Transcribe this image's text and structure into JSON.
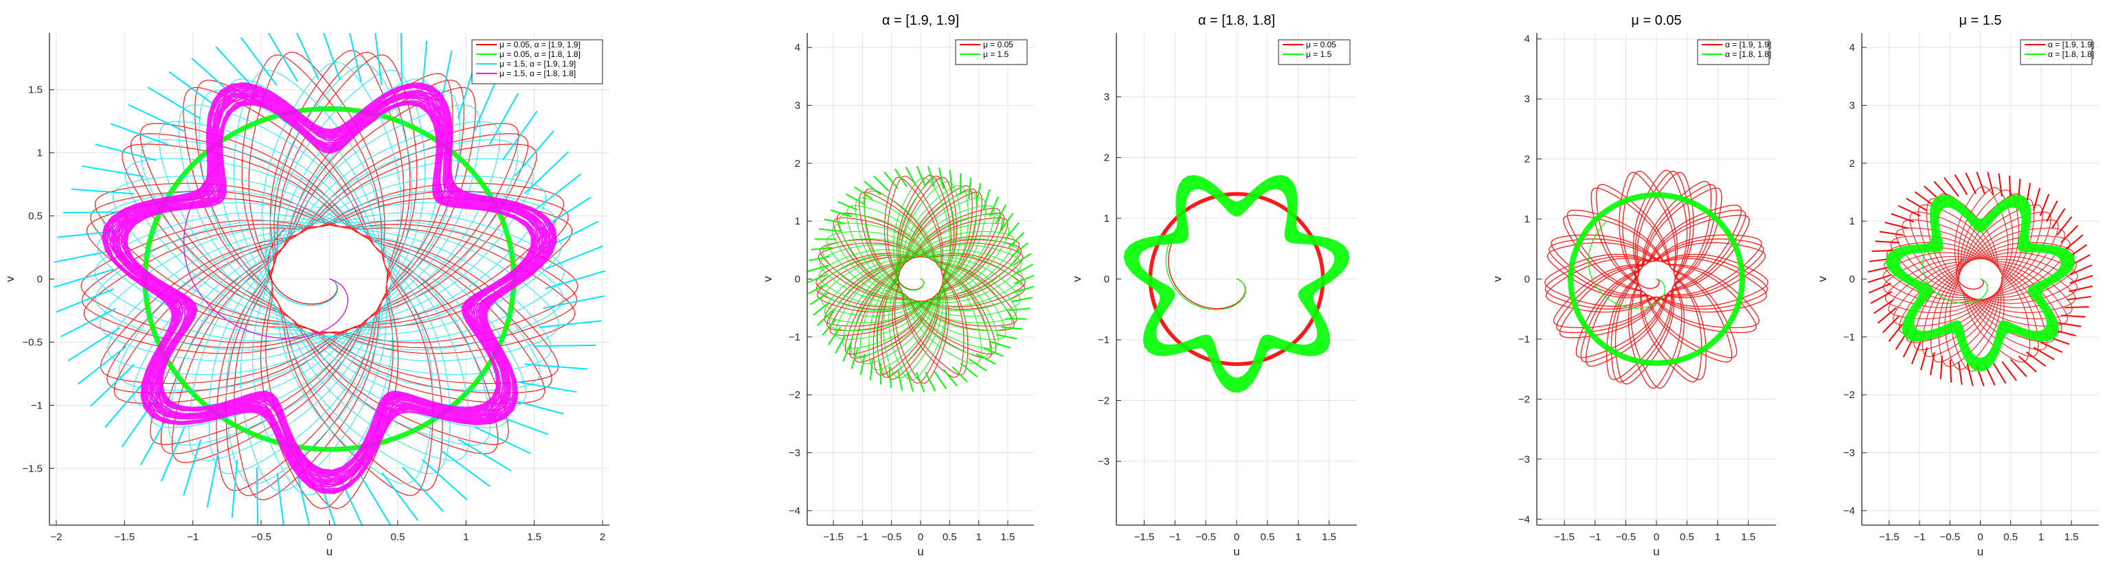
{
  "chart_data": [
    {
      "type": "line",
      "title": "",
      "xlabel": "u",
      "ylabel": "v",
      "xlim": [
        -2.05,
        2.05
      ],
      "ylim": [
        -1.95,
        1.95
      ],
      "xticks": [
        -2,
        -1.5,
        -1,
        -0.5,
        0,
        0.5,
        1,
        1.5,
        2
      ],
      "yticks": [
        -1.5,
        -1,
        -0.5,
        0,
        0.5,
        1,
        1.5
      ],
      "grid": true,
      "legend_position": "top-right",
      "series": [
        {
          "name": "μ = 0.05, α = [1.9, 1.9]",
          "color": "#ff0000",
          "style": "rosette",
          "r_inner": 0.42,
          "r_outer": 1.82,
          "loops": 46,
          "turn": 0.47,
          "width": 1.2,
          "spikes": 0
        },
        {
          "name": "μ = 0.05, α = [1.8, 1.8]",
          "color": "#00ff00",
          "style": "ring",
          "r_ring": 1.35,
          "band": 0.035,
          "lobes": 0,
          "width": 2.6,
          "spikes": 0
        },
        {
          "name": "μ = 1.5, α = [1.9, 1.9]",
          "color": "#00e5ff",
          "style": "rosette",
          "r_inner": 0.45,
          "r_outer": 1.72,
          "loops": 46,
          "turn": 0.49,
          "width": 1.0,
          "spikes": 0.3
        },
        {
          "name": "μ = 1.5, α = [1.8, 1.8]",
          "color": "#ff00ff",
          "style": "ring",
          "r_ring": 1.35,
          "band": 0.26,
          "lobes": 7,
          "width": 2.4,
          "spikes": 0
        }
      ]
    },
    {
      "type": "line",
      "title": "α = [1.9, 1.9]",
      "xlabel": "u",
      "ylabel": "v",
      "xlim": [
        -1.95,
        1.95
      ],
      "ylim": [
        -4.25,
        4.25
      ],
      "xticks": [
        -1.5,
        -1,
        -0.5,
        0,
        0.5,
        1,
        1.5
      ],
      "yticks": [
        -4,
        -3,
        -2,
        -1,
        0,
        1,
        2,
        3,
        4
      ],
      "grid": true,
      "legend_position": "top-right",
      "series": [
        {
          "name": "μ = 0.05",
          "color": "#ff0000",
          "style": "rosette",
          "r_inner": 0.38,
          "r_outer": 1.8,
          "loops": 42,
          "turn": 0.47,
          "width": 1.1,
          "spikes": 0
        },
        {
          "name": "μ = 1.5",
          "color": "#00ff00",
          "style": "rosette",
          "r_inner": 0.4,
          "r_outer": 1.75,
          "loops": 42,
          "turn": 0.49,
          "width": 1.1,
          "spikes": 0.2
        }
      ]
    },
    {
      "type": "line",
      "title": "α = [1.8, 1.8]",
      "xlabel": "u",
      "ylabel": "v",
      "xlim": [
        -1.95,
        1.95
      ],
      "ylim": [
        -4.05,
        4.05
      ],
      "xticks": [
        -1.5,
        -1,
        -0.5,
        0,
        0.5,
        1,
        1.5
      ],
      "yticks": [
        -3,
        -2,
        -1,
        0,
        1,
        2,
        3
      ],
      "grid": true,
      "legend_position": "top-right",
      "series": [
        {
          "name": "μ = 0.05",
          "color": "#ff0000",
          "style": "ring",
          "r_ring": 1.4,
          "band": 0.05,
          "lobes": 0,
          "width": 2.4,
          "spikes": 0
        },
        {
          "name": "μ = 1.5",
          "color": "#00ff00",
          "style": "ring",
          "r_ring": 1.45,
          "band": 0.3,
          "lobes": 7,
          "width": 3.4,
          "spikes": 0
        }
      ]
    },
    {
      "type": "line",
      "title": "μ = 0.05",
      "xlabel": "u",
      "ylabel": "v",
      "xlim": [
        -1.95,
        1.95
      ],
      "ylim": [
        -4.1,
        4.1
      ],
      "xticks": [
        -1.5,
        -1,
        -0.5,
        0,
        0.5,
        1,
        1.5
      ],
      "yticks": [
        -4,
        -3,
        -2,
        -1,
        0,
        1,
        2,
        3,
        4
      ],
      "grid": true,
      "legend_position": "top-right",
      "series": [
        {
          "name": "α = [1.9, 1.9]",
          "color": "#ff0000",
          "style": "rosette",
          "r_inner": 0.3,
          "r_outer": 1.82,
          "loops": 44,
          "turn": 0.47,
          "width": 1.3,
          "spikes": 0
        },
        {
          "name": "α = [1.8, 1.8]",
          "color": "#00ff00",
          "style": "ring",
          "r_ring": 1.4,
          "band": 0.06,
          "lobes": 0,
          "width": 4.5,
          "spikes": 0
        }
      ]
    },
    {
      "type": "line",
      "title": "μ = 1.5",
      "xlabel": "u",
      "ylabel": "v",
      "xlim": [
        -1.95,
        1.95
      ],
      "ylim": [
        -4.25,
        4.25
      ],
      "xticks": [
        -1.5,
        -1,
        -0.5,
        0,
        0.5,
        1,
        1.5
      ],
      "yticks": [
        -4,
        -3,
        -2,
        -1,
        0,
        1,
        2,
        3,
        4
      ],
      "grid": true,
      "legend_position": "top-right",
      "series": [
        {
          "name": "α = [1.9, 1.9]",
          "color": "#ff0000",
          "style": "rosette",
          "r_inner": 0.35,
          "r_outer": 1.6,
          "loops": 44,
          "turn": 0.49,
          "width": 1.1,
          "spikes": 0.25
        },
        {
          "name": "α = [1.8, 1.8]",
          "color": "#00ff00",
          "style": "ring",
          "r_ring": 1.2,
          "band": 0.28,
          "lobes": 7,
          "width": 3.6,
          "spikes": 0
        }
      ]
    }
  ]
}
